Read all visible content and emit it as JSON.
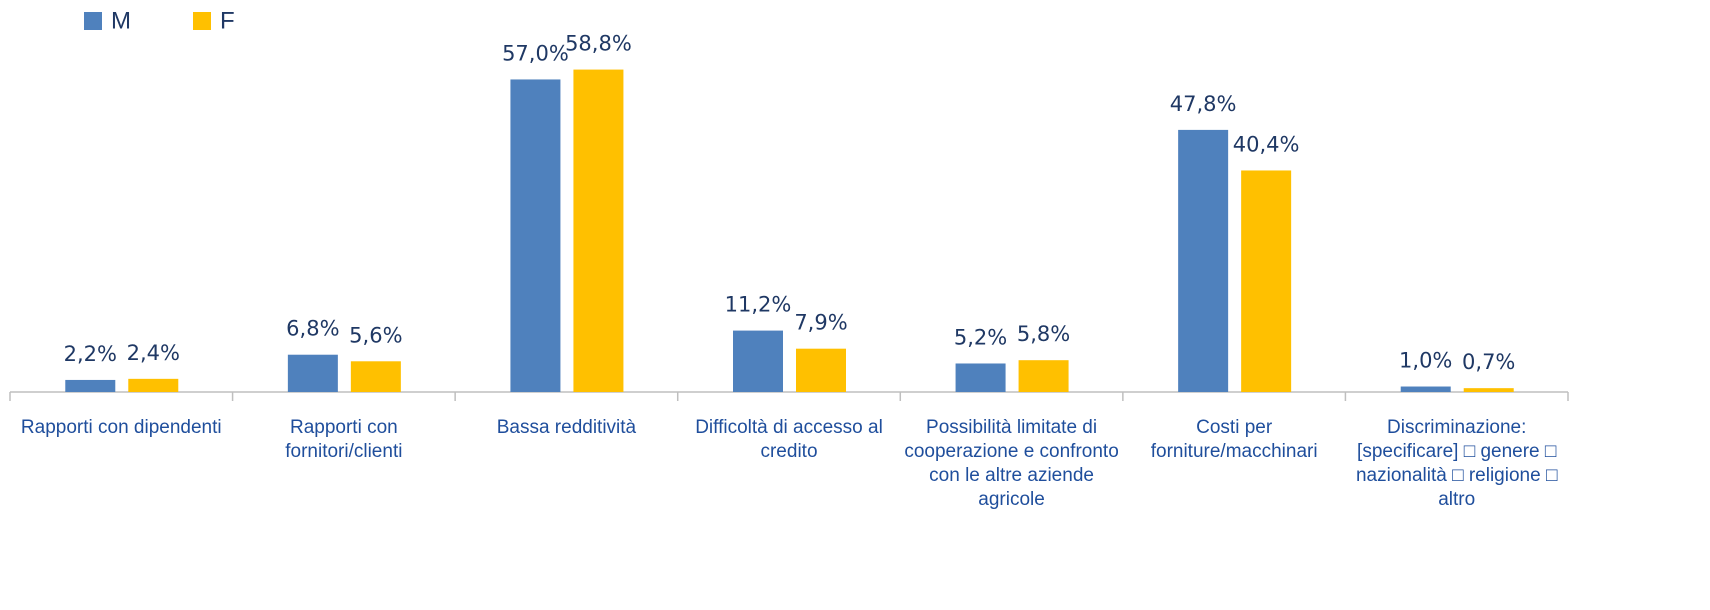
{
  "chart_data": {
    "type": "bar",
    "categories": [
      "Rapporti con dipendenti",
      "Rapporti con fornitori/clienti",
      "Bassa redditività",
      "Difficoltà di accesso al credito",
      "Possibilità limitate di cooperazione e confronto con le altre aziende agricole",
      "Costi per forniture/macchinari",
      "Discriminazione: [specificare] □ genere □ nazionalità □ religione □ altro"
    ],
    "series": [
      {
        "name": "M",
        "color": "#4f81bd",
        "values": [
          2.2,
          6.8,
          57.0,
          11.2,
          5.2,
          47.8,
          1.0
        ],
        "value_labels": [
          "2,2%",
          "6,8%",
          "57,0%",
          "11,2%",
          "5,2%",
          "47,8%",
          "1,0%"
        ]
      },
      {
        "name": "F",
        "color": "#ffc000",
        "values": [
          2.4,
          5.6,
          58.8,
          7.9,
          5.8,
          40.4,
          0.7
        ],
        "value_labels": [
          "2,4%",
          "5,6%",
          "58,8%",
          "7,9%",
          "5,8%",
          "40,4%",
          "0,7%"
        ]
      }
    ],
    "ylim": [
      0,
      60
    ]
  }
}
